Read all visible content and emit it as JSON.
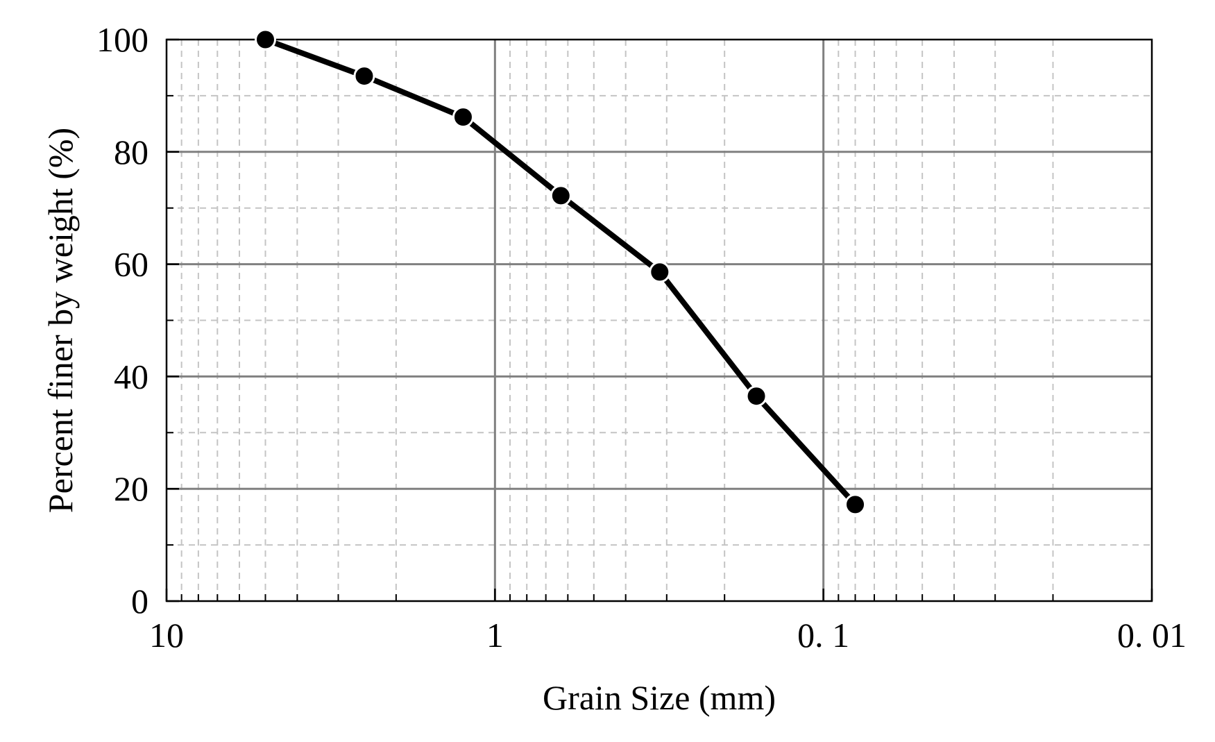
{
  "chart_data": {
    "type": "line",
    "title": "",
    "xlabel": "Grain Size (mm)",
    "ylabel": "Percent finer by weight (%)",
    "x_scale": "log",
    "x_reversed": true,
    "xlim": [
      10,
      0.01
    ],
    "ylim": [
      0,
      100
    ],
    "grid": true,
    "x_ticks": [
      {
        "value": 10,
        "label": "10"
      },
      {
        "value": 1,
        "label": "1"
      },
      {
        "value": 0.1,
        "label": "0. 1"
      },
      {
        "value": 0.01,
        "label": "0. 01"
      }
    ],
    "y_ticks": [
      {
        "value": 0,
        "label": "0"
      },
      {
        "value": 20,
        "label": "20"
      },
      {
        "value": 40,
        "label": "40"
      },
      {
        "value": 60,
        "label": "60"
      },
      {
        "value": 80,
        "label": "80"
      },
      {
        "value": 100,
        "label": "100"
      }
    ],
    "series": [
      {
        "x": [
          5,
          2.5,
          1.25,
          0.63,
          0.315,
          0.16,
          0.08
        ],
        "y": [
          100,
          93.5,
          86.2,
          72.2,
          58.6,
          36.5,
          17.2
        ],
        "color": "#000000",
        "marker": "circle"
      }
    ]
  }
}
